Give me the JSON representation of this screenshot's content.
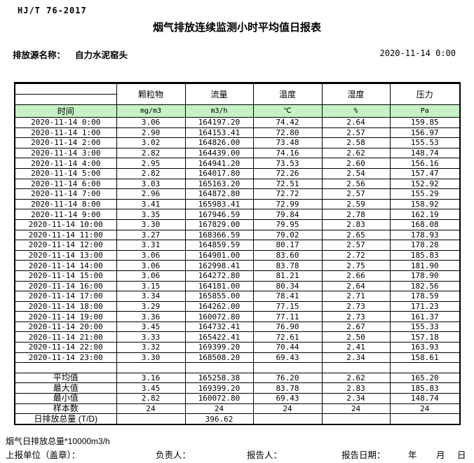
{
  "header": {
    "standard": "HJ/T 76-2017",
    "title": "烟气排放连续监测小时平均值日报表",
    "source_label": "排放源名称：",
    "source_name": "自力水泥窑头",
    "datetime": "2020-11-14 0:00"
  },
  "table": {
    "time_header": "时间",
    "columns": [
      "颗粒物",
      "流量",
      "温度",
      "湿度",
      "压力"
    ],
    "units": [
      "mg/m3",
      "m3/h",
      "℃",
      "%",
      "Pa"
    ],
    "rows": [
      {
        "time": "2020-11-14 0:00",
        "values": [
          "3.06",
          "164197.20",
          "74.42",
          "2.64",
          "159.85"
        ]
      },
      {
        "time": "2020-11-14 1:00",
        "values": [
          "2.90",
          "164153.41",
          "72.80",
          "2.57",
          "156.97"
        ]
      },
      {
        "time": "2020-11-14 2:00",
        "values": [
          "3.02",
          "164826.00",
          "73.48",
          "2.58",
          "155.53"
        ]
      },
      {
        "time": "2020-11-14 3:00",
        "values": [
          "2.82",
          "164439.00",
          "74.16",
          "2.62",
          "148.74"
        ]
      },
      {
        "time": "2020-11-14 4:00",
        "values": [
          "2.95",
          "164941.20",
          "73.53",
          "2.60",
          "156.16"
        ]
      },
      {
        "time": "2020-11-14 5:00",
        "values": [
          "2.82",
          "164017.80",
          "72.26",
          "2.54",
          "157.47"
        ]
      },
      {
        "time": "2020-11-14 6:00",
        "values": [
          "3.03",
          "165163.20",
          "72.51",
          "2.56",
          "152.92"
        ]
      },
      {
        "time": "2020-11-14 7:00",
        "values": [
          "2.96",
          "164872.80",
          "72.72",
          "2.57",
          "155.29"
        ]
      },
      {
        "time": "2020-11-14 8:00",
        "values": [
          "3.41",
          "165983.41",
          "72.99",
          "2.59",
          "158.92"
        ]
      },
      {
        "time": "2020-11-14 9:00",
        "values": [
          "3.35",
          "167946.59",
          "79.84",
          "2.78",
          "162.19"
        ]
      },
      {
        "time": "2020-11-14 10:00",
        "values": [
          "3.30",
          "167829.00",
          "79.95",
          "2.83",
          "168.08"
        ]
      },
      {
        "time": "2020-11-14 11:00",
        "values": [
          "3.27",
          "168366.59",
          "79.02",
          "2.65",
          "178.93"
        ]
      },
      {
        "time": "2020-11-14 12:00",
        "values": [
          "3.31",
          "164859.59",
          "80.17",
          "2.57",
          "178.28"
        ]
      },
      {
        "time": "2020-11-14 13:00",
        "values": [
          "3.06",
          "164901.00",
          "83.60",
          "2.72",
          "185.83"
        ]
      },
      {
        "time": "2020-11-14 14:00",
        "values": [
          "3.06",
          "162998.41",
          "83.78",
          "2.75",
          "181.90"
        ]
      },
      {
        "time": "2020-11-14 15:00",
        "values": [
          "3.06",
          "164272.80",
          "81.21",
          "2.66",
          "178.90"
        ]
      },
      {
        "time": "2020-11-14 16:00",
        "values": [
          "3.15",
          "164181.00",
          "80.34",
          "2.64",
          "182.56"
        ]
      },
      {
        "time": "2020-11-14 17:00",
        "values": [
          "3.34",
          "165855.00",
          "78.41",
          "2.71",
          "178.59"
        ]
      },
      {
        "time": "2020-11-14 18:00",
        "values": [
          "3.29",
          "164262.00",
          "77.15",
          "2.73",
          "171.23"
        ]
      },
      {
        "time": "2020-11-14 19:00",
        "values": [
          "3.36",
          "160072.80",
          "77.11",
          "2.73",
          "161.37"
        ]
      },
      {
        "time": "2020-11-14 20:00",
        "values": [
          "3.45",
          "164732.41",
          "76.90",
          "2.67",
          "155.33"
        ]
      },
      {
        "time": "2020-11-14 21:00",
        "values": [
          "3.33",
          "165422.41",
          "72.61",
          "2.50",
          "157.18"
        ]
      },
      {
        "time": "2020-11-14 22:00",
        "values": [
          "3.32",
          "169399.20",
          "70.44",
          "2.41",
          "163.93"
        ]
      },
      {
        "time": "2020-11-14 23:00",
        "values": [
          "3.30",
          "168508.20",
          "69.43",
          "2.34",
          "158.61"
        ]
      }
    ],
    "summary": [
      {
        "label": "平均值",
        "values": [
          "3.16",
          "165258.38",
          "76.20",
          "2.62",
          "165.20"
        ]
      },
      {
        "label": "最大值",
        "values": [
          "3.45",
          "169399.20",
          "83.78",
          "2.83",
          "185.83"
        ]
      },
      {
        "label": "最小值",
        "values": [
          "2.82",
          "160072.80",
          "69.43",
          "2.34",
          "148.74"
        ]
      },
      {
        "label": "样本数",
        "values": [
          "24",
          "24",
          "24",
          "24",
          "24"
        ]
      },
      {
        "label": "日排放总量 (T/D)",
        "values": [
          "",
          "396.62",
          "",
          "",
          ""
        ]
      }
    ]
  },
  "footer": {
    "note": "烟气日排放总量*10000m3/h",
    "report_unit_label": "上报单位（盖章）：",
    "responsible_label": "负责人：",
    "reporter_label": "报告人：",
    "report_date_label": "报告日期：",
    "year_label": "年",
    "month_label": "月",
    "day_label": "日"
  },
  "colors": {
    "header_green": "#c6f2c6",
    "border": "#000000"
  }
}
